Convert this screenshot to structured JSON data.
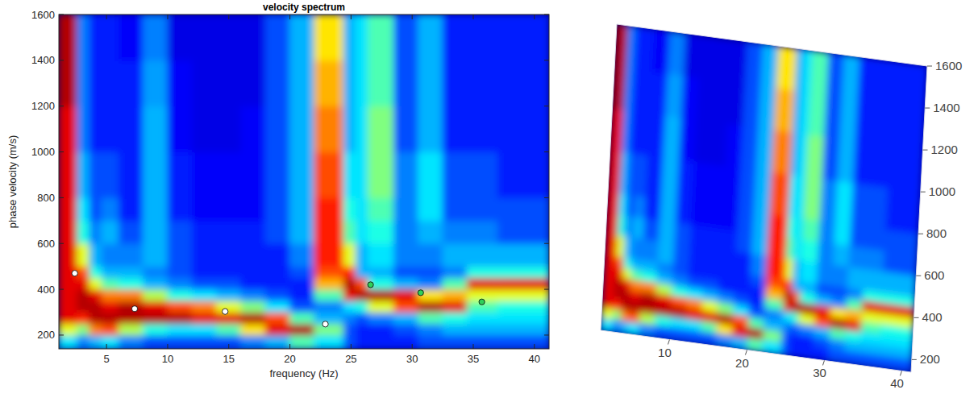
{
  "chart_data": [
    {
      "type": "heatmap",
      "title": "velocity spectrum",
      "x_label": "frequency (Hz)",
      "y_label": "phase velocity (m/s)",
      "xlim": [
        1.1,
        41.2
      ],
      "ylim": [
        140,
        1600
      ],
      "xticks": [
        5,
        10,
        15,
        20,
        25,
        30,
        35,
        40
      ],
      "yticks": [
        200,
        400,
        600,
        800,
        1000,
        1200,
        1400,
        1600
      ],
      "zlim": [
        0,
        1
      ],
      "x_bins": [
        1.1,
        2.6,
        3.6,
        4.6,
        6,
        8,
        10,
        12,
        14,
        16,
        18,
        20,
        22,
        24.4,
        25.4,
        26.4,
        28.5,
        30.5,
        32.5,
        34.5,
        37,
        41.2
      ],
      "y_bins": [
        140,
        200,
        250,
        300,
        350,
        400,
        450,
        500,
        600,
        700,
        800,
        1000,
        1200,
        1400,
        1600
      ],
      "cells": [
        [
          0.35,
          0.25,
          0.3,
          0.35,
          0.25,
          0.2,
          0.2,
          0.2,
          0.2,
          0.25,
          0.3,
          0.45,
          0.35,
          0.2,
          0.15,
          0.15,
          0.15,
          0.2,
          0.2,
          0.2,
          0.2
        ],
        [
          0.6,
          0.5,
          0.75,
          0.8,
          0.55,
          0.4,
          0.35,
          0.35,
          0.45,
          0.65,
          0.9,
          0.95,
          0.5,
          0.2,
          0.15,
          0.15,
          0.2,
          0.25,
          0.3,
          0.3,
          0.3
        ],
        [
          0.9,
          0.85,
          0.95,
          0.95,
          0.95,
          0.95,
          0.95,
          0.9,
          0.9,
          0.95,
          0.8,
          0.45,
          0.3,
          0.25,
          0.2,
          0.25,
          0.3,
          0.45,
          0.4,
          0.35,
          0.35
        ],
        [
          0.9,
          0.95,
          0.95,
          0.9,
          0.95,
          0.9,
          0.8,
          0.75,
          0.6,
          0.5,
          0.35,
          0.2,
          0.25,
          0.35,
          0.4,
          0.6,
          0.8,
          0.95,
          0.9,
          0.45,
          0.4
        ],
        [
          0.9,
          0.95,
          0.9,
          0.75,
          0.75,
          0.55,
          0.4,
          0.35,
          0.3,
          0.25,
          0.2,
          0.15,
          0.45,
          0.9,
          0.95,
          0.95,
          0.9,
          0.65,
          0.7,
          0.6,
          0.6
        ],
        [
          0.9,
          0.9,
          0.6,
          0.45,
          0.4,
          0.3,
          0.25,
          0.2,
          0.2,
          0.15,
          0.15,
          0.15,
          0.7,
          0.95,
          0.8,
          0.4,
          0.3,
          0.25,
          0.45,
          0.9,
          0.9
        ],
        [
          0.9,
          0.8,
          0.4,
          0.3,
          0.3,
          0.25,
          0.2,
          0.15,
          0.15,
          0.15,
          0.15,
          0.2,
          0.8,
          0.85,
          0.3,
          0.3,
          0.2,
          0.2,
          0.25,
          0.4,
          0.4
        ],
        [
          0.9,
          0.6,
          0.3,
          0.25,
          0.25,
          0.3,
          0.2,
          0.15,
          0.15,
          0.15,
          0.15,
          0.25,
          0.85,
          0.6,
          0.3,
          0.35,
          0.25,
          0.25,
          0.3,
          0.3,
          0.3
        ],
        [
          0.9,
          0.4,
          0.25,
          0.3,
          0.2,
          0.3,
          0.2,
          0.15,
          0.15,
          0.15,
          0.2,
          0.3,
          0.85,
          0.45,
          0.35,
          0.4,
          0.25,
          0.3,
          0.25,
          0.25,
          0.2
        ],
        [
          0.9,
          0.35,
          0.2,
          0.25,
          0.15,
          0.3,
          0.15,
          0.12,
          0.12,
          0.12,
          0.2,
          0.3,
          0.85,
          0.4,
          0.35,
          0.45,
          0.25,
          0.35,
          0.2,
          0.2,
          0.2
        ],
        [
          0.9,
          0.3,
          0.2,
          0.2,
          0.15,
          0.3,
          0.15,
          0.12,
          0.12,
          0.12,
          0.2,
          0.3,
          0.8,
          0.35,
          0.35,
          0.5,
          0.25,
          0.35,
          0.2,
          0.2,
          0.15
        ],
        [
          0.9,
          0.25,
          0.15,
          0.15,
          0.15,
          0.3,
          0.12,
          0.1,
          0.1,
          0.12,
          0.2,
          0.3,
          0.75,
          0.3,
          0.35,
          0.5,
          0.2,
          0.3,
          0.15,
          0.15,
          0.15
        ],
        [
          0.95,
          0.25,
          0.15,
          0.15,
          0.15,
          0.28,
          0.12,
          0.1,
          0.1,
          0.1,
          0.2,
          0.3,
          0.7,
          0.3,
          0.35,
          0.45,
          0.2,
          0.3,
          0.15,
          0.15,
          0.15
        ],
        [
          0.95,
          0.25,
          0.15,
          0.15,
          0.12,
          0.25,
          0.1,
          0.1,
          0.1,
          0.1,
          0.2,
          0.3,
          0.65,
          0.3,
          0.35,
          0.45,
          0.2,
          0.3,
          0.15,
          0.15,
          0.15
        ]
      ],
      "series": [
        {
          "type": "scatter",
          "color": "#ffffff",
          "marker": "circle",
          "x": [
            2.4,
            7.3,
            14.7,
            22.9
          ],
          "values": [
            470,
            315,
            303,
            248
          ]
        },
        {
          "type": "scatter",
          "color": "#2fd05a",
          "marker": "circle",
          "x": [
            26.6,
            30.7,
            35.7
          ],
          "values": [
            420,
            385,
            345
          ]
        }
      ]
    },
    {
      "type": "surface",
      "xlim": [
        1.1,
        41.2
      ],
      "ylim": [
        140,
        1600
      ],
      "xticks": [
        10,
        20,
        30,
        40
      ],
      "yticks": [
        200,
        400,
        600,
        800,
        1000,
        1200,
        1400,
        1600
      ]
    }
  ]
}
